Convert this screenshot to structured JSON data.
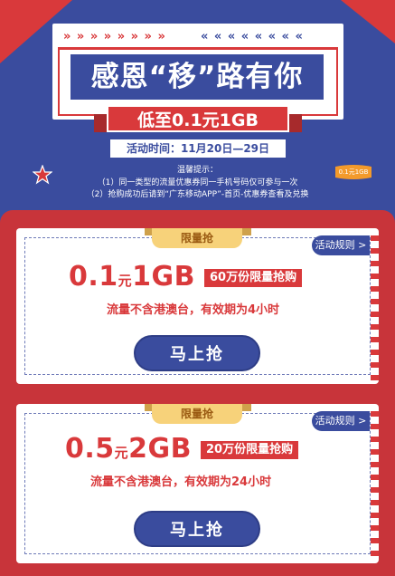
{
  "header": {
    "arrows_left": "» » » » » » » »",
    "arrows_right": "« « « « « « « «",
    "main_title": "感恩“移”路有你",
    "sub_title": "低至0.1元1GB",
    "date": "活动时间：11月20日—29日",
    "tips_title": "温馨提示：",
    "tip1": "（1）同一类型的流量优惠券同一手机号码仅可参与一次",
    "tip2": "（2）抢购成功后请到“广东移动APP”-首页-优惠券查看及兑换",
    "coupon_icon_text": "0.1元1GB"
  },
  "cards": [
    {
      "ribbon": "限量抢",
      "rules_label": "活动规则 >",
      "price_num": "0.1",
      "price_unit": "元",
      "price_gb": "1GB",
      "quota": "60万份限量抢购",
      "desc": "流量不含港澳台，有效期为4小时",
      "buy_label": "马上抢"
    },
    {
      "ribbon": "限量抢",
      "rules_label": "活动规则 >",
      "price_num": "0.5",
      "price_unit": "元",
      "price_gb": "2GB",
      "quota": "20万份限量抢购",
      "desc": "流量不含港澳台，有效期为24小时",
      "buy_label": "马上抢"
    }
  ],
  "colors": {
    "brand_blue": "#3a4c9e",
    "brand_red": "#d9393b",
    "ribbon_gold": "#f7d27a"
  }
}
